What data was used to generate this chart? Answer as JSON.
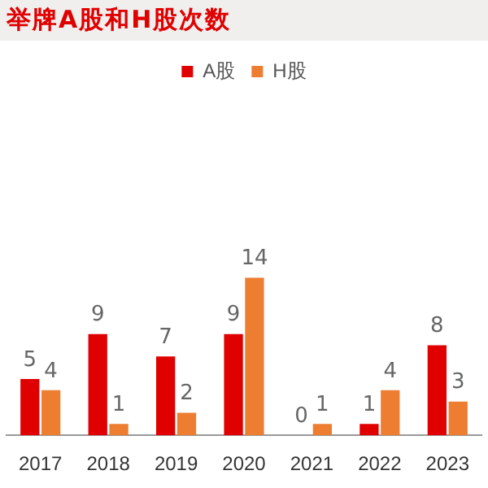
{
  "chart_data": {
    "type": "bar",
    "title": "举牌A股和H股次数",
    "categories": [
      "2017",
      "2018",
      "2019",
      "2020",
      "2021",
      "2022",
      "2023"
    ],
    "series": [
      {
        "name": "A股",
        "color": "#e00000",
        "values": [
          5,
          9,
          7,
          9,
          0,
          1,
          8
        ]
      },
      {
        "name": "H股",
        "color": "#ed7d31",
        "values": [
          4,
          1,
          2,
          14,
          1,
          4,
          3
        ]
      }
    ],
    "data_labels": true,
    "legend": "top",
    "grid": false
  }
}
